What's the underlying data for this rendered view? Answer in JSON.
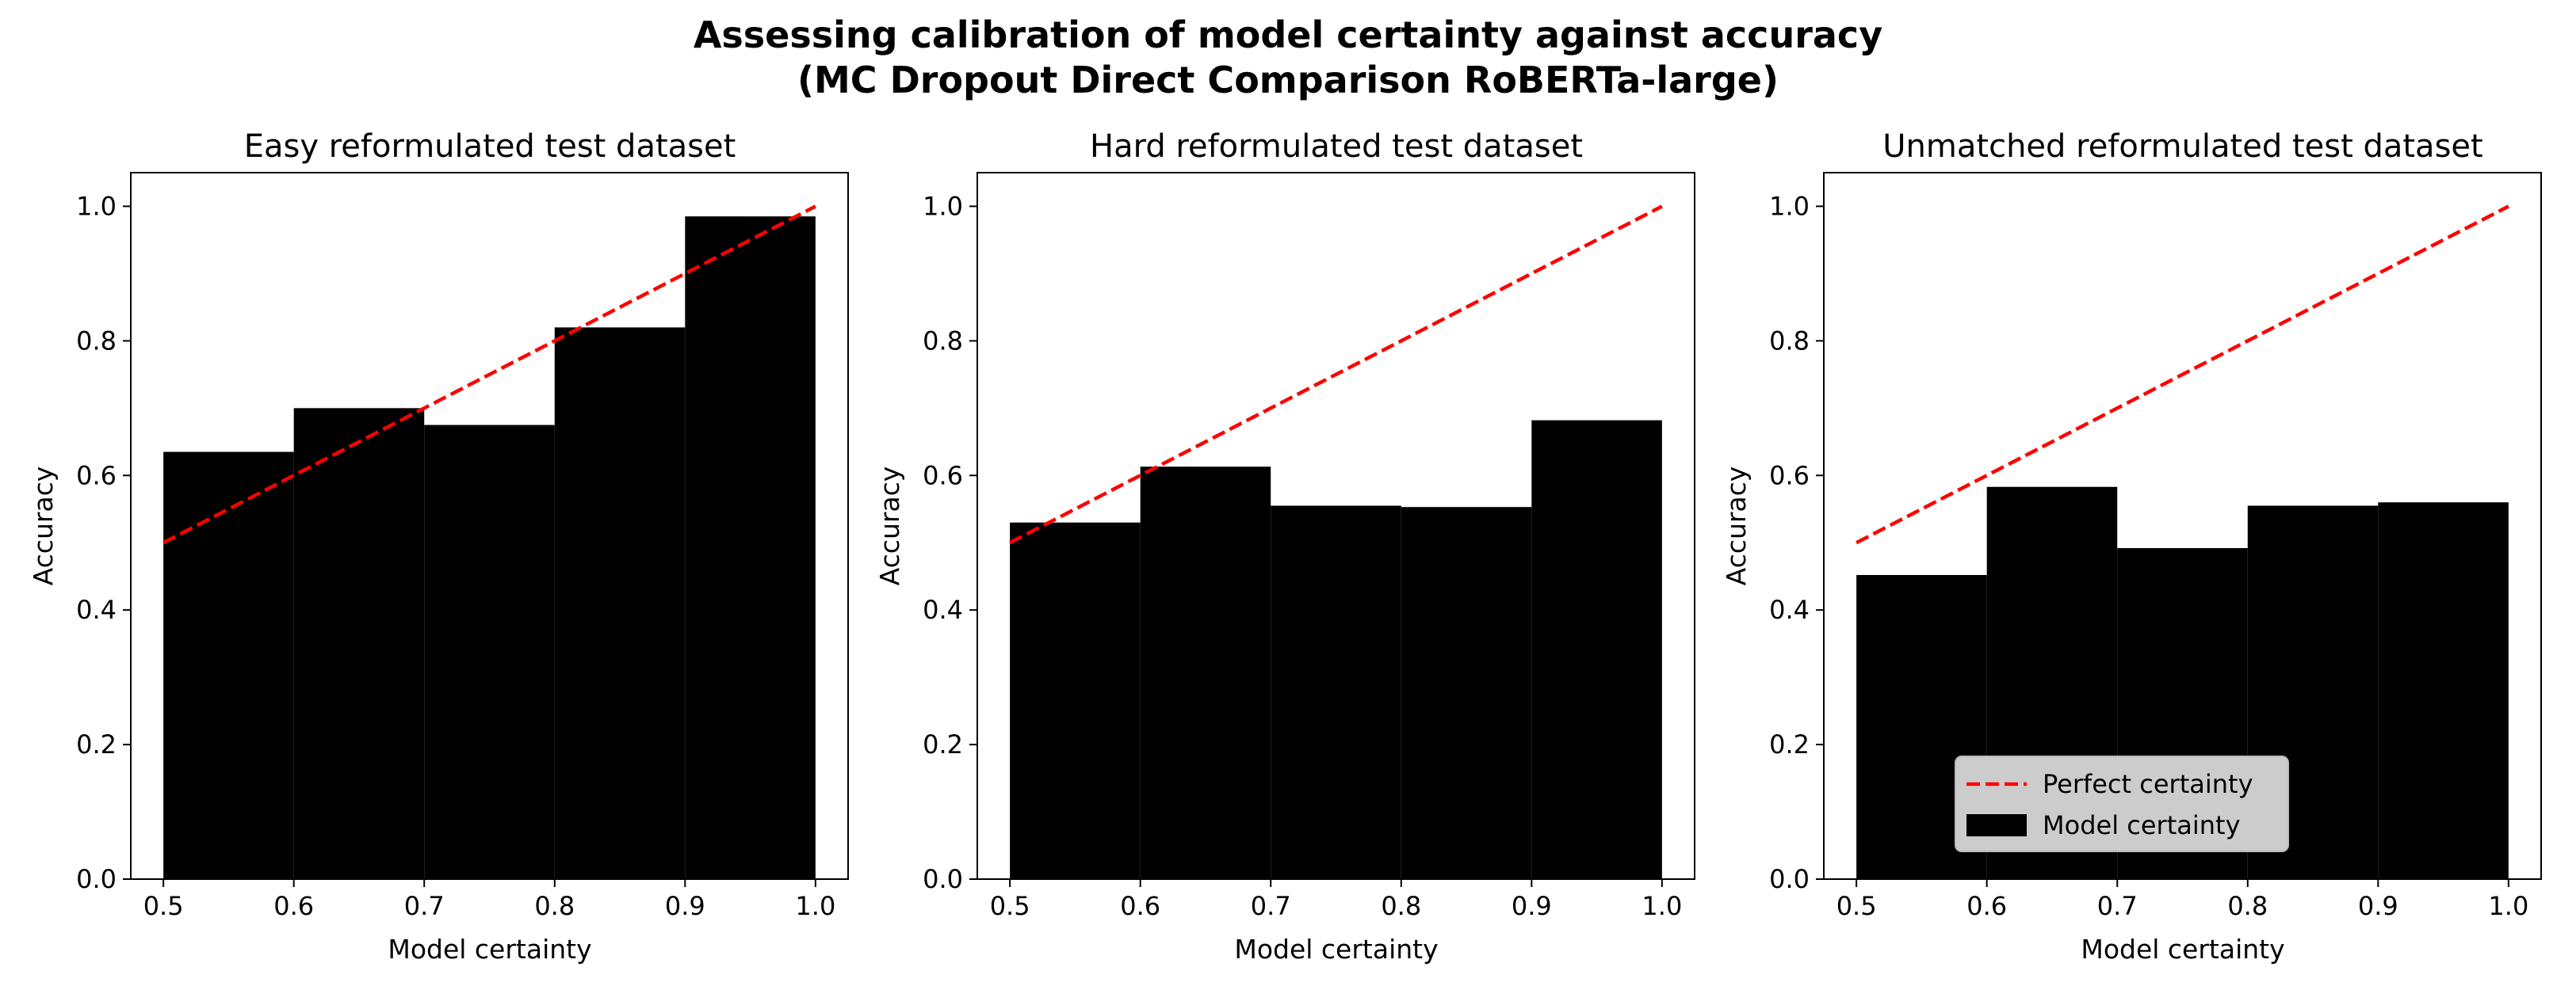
{
  "figure": {
    "title_line1": "Assessing calibration of model certainty against accuracy",
    "title_line2": "(MC Dropout Direct Comparison RoBERTa-large)"
  },
  "colors": {
    "bar": "#000000",
    "perfect_line": "#ff0000",
    "legend_bg": "#cccccc"
  },
  "chart_data": [
    {
      "type": "bar",
      "title": "Easy reformulated test dataset",
      "xlabel": "Model certainty",
      "ylabel": "Accuracy",
      "xlim": [
        0.475,
        1.025
      ],
      "ylim": [
        0.0,
        1.05
      ],
      "xticks": [
        "0.5",
        "0.6",
        "0.7",
        "0.8",
        "0.9",
        "1.0"
      ],
      "yticks": [
        "0.0",
        "0.2",
        "0.4",
        "0.6",
        "0.8",
        "1.0"
      ],
      "bins": [
        [
          0.5,
          0.6
        ],
        [
          0.6,
          0.7
        ],
        [
          0.7,
          0.8
        ],
        [
          0.8,
          0.9
        ],
        [
          0.9,
          1.0
        ]
      ],
      "series": [
        {
          "name": "Model certainty",
          "values": [
            0.635,
            0.7,
            0.675,
            0.82,
            0.985
          ]
        },
        {
          "name": "Perfect certainty",
          "type": "line",
          "x": [
            0.5,
            1.0
          ],
          "y": [
            0.5,
            1.0
          ]
        }
      ],
      "legend": null
    },
    {
      "type": "bar",
      "title": "Hard reformulated test dataset",
      "xlabel": "Model certainty",
      "ylabel": "Accuracy",
      "xlim": [
        0.475,
        1.025
      ],
      "ylim": [
        0.0,
        1.05
      ],
      "xticks": [
        "0.5",
        "0.6",
        "0.7",
        "0.8",
        "0.9",
        "1.0"
      ],
      "yticks": [
        "0.0",
        "0.2",
        "0.4",
        "0.6",
        "0.8",
        "1.0"
      ],
      "bins": [
        [
          0.5,
          0.6
        ],
        [
          0.6,
          0.7
        ],
        [
          0.7,
          0.8
        ],
        [
          0.8,
          0.9
        ],
        [
          0.9,
          1.0
        ]
      ],
      "series": [
        {
          "name": "Model certainty",
          "values": [
            0.53,
            0.613,
            0.555,
            0.553,
            0.682
          ]
        },
        {
          "name": "Perfect certainty",
          "type": "line",
          "x": [
            0.5,
            1.0
          ],
          "y": [
            0.5,
            1.0
          ]
        }
      ],
      "legend": null
    },
    {
      "type": "bar",
      "title": "Unmatched reformulated test dataset",
      "xlabel": "Model certainty",
      "ylabel": "Accuracy",
      "xlim": [
        0.475,
        1.025
      ],
      "ylim": [
        0.0,
        1.05
      ],
      "xticks": [
        "0.5",
        "0.6",
        "0.7",
        "0.8",
        "0.9",
        "1.0"
      ],
      "yticks": [
        "0.0",
        "0.2",
        "0.4",
        "0.6",
        "0.8",
        "1.0"
      ],
      "bins": [
        [
          0.5,
          0.6
        ],
        [
          0.6,
          0.7
        ],
        [
          0.7,
          0.8
        ],
        [
          0.8,
          0.9
        ],
        [
          0.9,
          1.0
        ]
      ],
      "series": [
        {
          "name": "Model certainty",
          "values": [
            0.452,
            0.583,
            0.492,
            0.555,
            0.56
          ]
        },
        {
          "name": "Perfect certainty",
          "type": "line",
          "x": [
            0.5,
            1.0
          ],
          "y": [
            0.5,
            1.0
          ]
        }
      ],
      "legend": {
        "placement": "lower-center",
        "entries": [
          {
            "label": "Perfect certainty",
            "style": "dashed-line"
          },
          {
            "label": "Model certainty",
            "style": "box"
          }
        ]
      }
    }
  ]
}
